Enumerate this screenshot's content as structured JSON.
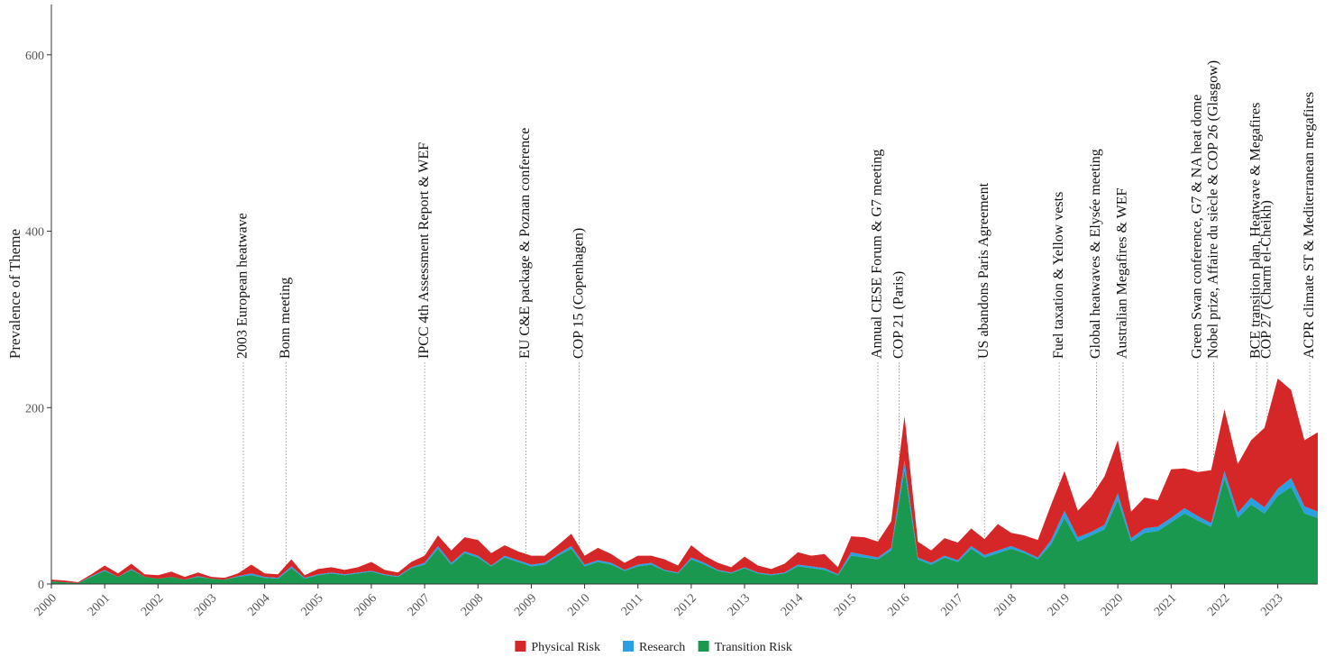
{
  "chart_data": {
    "type": "stacked_area",
    "y_label": "Prevalence of Theme",
    "ylim": [
      0,
      657
    ],
    "yticks": [
      0,
      200,
      400,
      600
    ],
    "xlim": [
      2000,
      2023.75
    ],
    "xticks": [
      2000,
      2001,
      2002,
      2003,
      2004,
      2005,
      2006,
      2007,
      2008,
      2009,
      2010,
      2011,
      2012,
      2013,
      2014,
      2015,
      2016,
      2017,
      2018,
      2019,
      2020,
      2021,
      2022,
      2023
    ],
    "x": [
      2000,
      2000.25,
      2000.5,
      2000.75,
      2001,
      2001.25,
      2001.5,
      2001.75,
      2002,
      2002.25,
      2002.5,
      2002.75,
      2003,
      2003.25,
      2003.5,
      2003.75,
      2004,
      2004.25,
      2004.5,
      2004.75,
      2005,
      2005.25,
      2005.5,
      2005.75,
      2006,
      2006.25,
      2006.5,
      2006.75,
      2007,
      2007.25,
      2007.5,
      2007.75,
      2008,
      2008.25,
      2008.5,
      2008.75,
      2009,
      2009.25,
      2009.5,
      2009.75,
      2010,
      2010.25,
      2010.5,
      2010.75,
      2011,
      2011.25,
      2011.5,
      2011.75,
      2012,
      2012.25,
      2012.5,
      2012.75,
      2013,
      2013.25,
      2013.5,
      2013.75,
      2014,
      2014.25,
      2014.5,
      2014.75,
      2015,
      2015.25,
      2015.5,
      2015.75,
      2016,
      2016.25,
      2016.5,
      2016.75,
      2017,
      2017.25,
      2017.5,
      2017.75,
      2018,
      2018.25,
      2018.5,
      2018.75,
      2019,
      2019.25,
      2019.5,
      2019.75,
      2020,
      2020.25,
      2020.5,
      2020.75,
      2021,
      2021.25,
      2021.5,
      2021.75,
      2022,
      2022.25,
      2022.5,
      2022.75,
      2023,
      2023.25,
      2023.5,
      2023.75
    ],
    "series": [
      {
        "name": "Physical Risk",
        "color": "#d62728",
        "values": [
          2,
          2,
          1,
          2,
          5,
          4,
          6,
          3,
          4,
          6,
          3,
          4,
          2,
          2,
          3,
          10,
          4,
          4,
          8,
          3,
          6,
          6,
          5,
          6,
          10,
          5,
          4,
          6,
          8,
          12,
          14,
          16,
          18,
          14,
          12,
          10,
          10,
          8,
          10,
          14,
          10,
          14,
          10,
          8,
          10,
          8,
          12,
          8,
          14,
          8,
          8,
          6,
          12,
          8,
          6,
          10,
          14,
          12,
          16,
          8,
          18,
          20,
          18,
          30,
          50,
          18,
          14,
          20,
          20,
          20,
          18,
          30,
          15,
          18,
          20,
          40,
          45,
          30,
          40,
          55,
          60,
          30,
          35,
          30,
          55,
          45,
          50,
          60,
          70,
          55,
          65,
          90,
          125,
          100,
          75,
          90
        ]
      },
      {
        "name": "Research",
        "color": "#2b9fe0",
        "values": [
          0,
          0,
          0,
          1,
          1,
          0,
          1,
          0,
          0,
          0,
          0,
          1,
          0,
          0,
          1,
          2,
          1,
          1,
          2,
          1,
          1,
          1,
          1,
          1,
          1,
          1,
          1,
          1,
          2,
          3,
          2,
          2,
          2,
          1,
          2,
          2,
          2,
          2,
          2,
          3,
          2,
          2,
          2,
          1,
          2,
          2,
          1,
          1,
          2,
          2,
          1,
          1,
          1,
          1,
          1,
          1,
          2,
          2,
          2,
          1,
          4,
          3,
          2,
          3,
          10,
          2,
          2,
          2,
          2,
          3,
          3,
          3,
          3,
          2,
          2,
          5,
          8,
          5,
          4,
          5,
          8,
          4,
          5,
          5,
          5,
          6,
          5,
          4,
          8,
          6,
          8,
          7,
          8,
          10,
          8,
          7
        ]
      },
      {
        "name": "Transition Risk",
        "color": "#1a9850",
        "values": [
          3,
          2,
          1,
          8,
          15,
          8,
          16,
          8,
          6,
          8,
          5,
          8,
          6,
          5,
          8,
          10,
          7,
          6,
          18,
          6,
          10,
          12,
          10,
          12,
          14,
          10,
          8,
          18,
          22,
          40,
          22,
          35,
          30,
          20,
          30,
          25,
          20,
          22,
          32,
          40,
          20,
          25,
          22,
          15,
          20,
          22,
          15,
          12,
          28,
          22,
          15,
          12,
          18,
          12,
          10,
          12,
          20,
          18,
          16,
          10,
          32,
          30,
          28,
          38,
          130,
          28,
          22,
          30,
          25,
          40,
          30,
          35,
          40,
          35,
          28,
          45,
          75,
          48,
          55,
          62,
          95,
          48,
          58,
          60,
          70,
          80,
          72,
          65,
          120,
          75,
          90,
          80,
          100,
          110,
          80,
          75
        ]
      }
    ],
    "annotations": [
      {
        "x": 2003.6,
        "label": "2003 European heatwave"
      },
      {
        "x": 2004.4,
        "label": "Bonn meeting"
      },
      {
        "x": 2007.0,
        "label": "IPCC 4th Assessment Report & WEF"
      },
      {
        "x": 2008.9,
        "label": "EU C&E package & Poznan conference"
      },
      {
        "x": 2009.9,
        "label": "COP 15 (Copenhagen)"
      },
      {
        "x": 2015.5,
        "label": "Annual CESE Forum & G7 meeting"
      },
      {
        "x": 2015.9,
        "label": "COP 21 (Paris)"
      },
      {
        "x": 2017.5,
        "label": "US abandons Paris Agreement"
      },
      {
        "x": 2018.9,
        "label": "Fuel taxation & Yellow vests"
      },
      {
        "x": 2019.6,
        "label": "Global heatwaves & Elysée meeting"
      },
      {
        "x": 2020.1,
        "label": "Australian Megafires & WEF"
      },
      {
        "x": 2021.5,
        "label": "Green Swan conference, G7 & NA heat dome"
      },
      {
        "x": 2021.8,
        "label": "Nobel prize, Affaire du siècle & COP 26 (Glasgow)"
      },
      {
        "x": 2022.6,
        "label": "BCE transition plan, Heatwave & Megafires"
      },
      {
        "x": 2022.8,
        "label": "COP 27 (Charm el-Cheikh)"
      },
      {
        "x": 2023.6,
        "label": "ACPR climate ST & Mediterranean megafires"
      }
    ]
  }
}
